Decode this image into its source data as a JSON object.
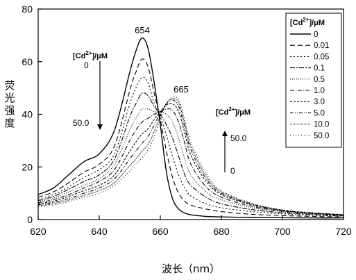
{
  "chart_data": {
    "type": "line",
    "title": "",
    "xlabel": "波长（nm）",
    "ylabel": "荧光强度",
    "xlim": [
      620,
      720
    ],
    "ylim": [
      0,
      80
    ],
    "x_ticks": [
      "620",
      "640",
      "660",
      "680",
      "700",
      "720"
    ],
    "y_ticks": [
      "0",
      "20",
      "40",
      "60",
      "80"
    ],
    "grid": false,
    "legend_title": "[Cd2+]/μM",
    "legend_position": "top-right",
    "x": [
      620,
      625,
      630,
      635,
      640,
      645,
      650,
      652,
      654,
      656,
      658,
      660,
      662,
      664,
      666,
      668,
      670,
      675,
      680,
      690,
      700,
      710,
      720
    ],
    "series": [
      {
        "name": "0",
        "dash": "",
        "values": [
          9.5,
          12,
          17,
          22,
          25,
          34,
          56,
          64,
          69,
          65,
          52,
          36,
          18,
          8,
          4,
          2.5,
          1.8,
          1.2,
          1.0,
          0.8,
          0.7,
          0.6,
          0.6
        ]
      },
      {
        "name": "0.01",
        "dash": "7,4",
        "values": [
          8.5,
          10.5,
          14,
          18,
          21,
          28,
          49,
          56,
          61,
          58,
          48,
          38,
          26,
          16,
          10,
          7,
          5.5,
          4,
          3,
          2,
          1.5,
          1.2,
          1.0
        ]
      },
      {
        "name": "0.05",
        "dash": "2,3",
        "values": [
          7.8,
          9.5,
          12.5,
          16,
          19,
          25,
          44,
          50,
          54,
          52,
          44,
          39,
          32,
          24,
          17,
          12,
          9,
          6,
          4.5,
          3,
          2.2,
          1.6,
          1.3
        ]
      },
      {
        "name": "0.1",
        "dash": "7,2,2,2",
        "values": [
          7.2,
          8.8,
          11.5,
          14.5,
          17,
          23,
          39,
          44,
          48,
          47,
          43,
          40,
          36,
          31,
          24,
          17,
          13,
          8.5,
          6,
          3.8,
          2.6,
          1.9,
          1.5
        ]
      },
      {
        "name": "0.5",
        "dash": "1,2",
        "values": [
          6.8,
          8.2,
          10.5,
          13,
          15.5,
          21,
          34,
          38.5,
          42,
          42,
          41,
          41,
          40,
          37,
          31,
          23,
          17,
          10.5,
          7.5,
          4.5,
          3,
          2.1,
          1.6
        ]
      },
      {
        "name": "1.0",
        "dash": "6,2,1,2",
        "values": [
          6.4,
          7.6,
          9.5,
          12,
          14.5,
          19,
          30,
          34,
          37,
          38.5,
          40,
          41,
          42,
          41.5,
          37,
          29,
          21,
          12.5,
          8.5,
          5,
          3.2,
          2.3,
          1.7
        ]
      },
      {
        "name": "3.0",
        "dash": "3,2",
        "values": [
          6.0,
          7.0,
          8.8,
          11,
          13,
          17,
          26,
          29.5,
          32.5,
          34.5,
          38,
          41,
          43.5,
          44,
          41,
          33,
          24.5,
          14.5,
          9.5,
          5.5,
          3.4,
          2.4,
          1.8
        ]
      },
      {
        "name": "5.0",
        "dash": "5,2,1,2,1,2",
        "values": [
          5.6,
          6.5,
          8.0,
          10,
          12,
          15.5,
          23,
          26,
          29,
          31.5,
          36,
          40.5,
          44,
          45.5,
          43,
          35,
          26.5,
          15.5,
          10,
          5.8,
          3.5,
          2.5,
          1.8
        ]
      },
      {
        "name": "10.0",
        "dash": "1,1",
        "values": [
          5.2,
          6.0,
          7.4,
          9.2,
          11,
          14,
          20.5,
          23,
          26,
          28.5,
          33.5,
          39.5,
          44,
          46,
          44.5,
          36.5,
          28,
          16.5,
          10.5,
          6,
          3.6,
          2.5,
          1.9
        ]
      },
      {
        "name": "50.0",
        "dash": "1,3",
        "values": [
          4.8,
          5.5,
          6.8,
          8.5,
          10,
          13,
          18.5,
          21,
          23.5,
          26.5,
          31.5,
          38.5,
          44,
          46.5,
          45.5,
          38,
          29.5,
          17.5,
          11,
          6.2,
          3.7,
          2.6,
          1.9
        ]
      }
    ],
    "annotations": {
      "peak_left": "654",
      "peak_right": "665",
      "arrow_down_title": "[Cd2+]/μM",
      "arrow_down_start": "0",
      "arrow_down_end": "50.0",
      "arrow_up_title": "[Cd2+]/μM",
      "arrow_up_start": "0",
      "arrow_up_end": "50.0"
    }
  }
}
